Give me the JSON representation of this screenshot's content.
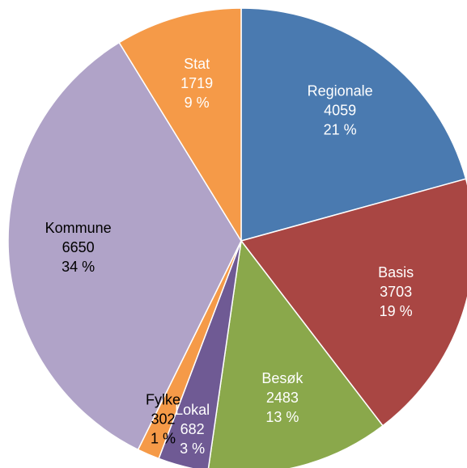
{
  "chart_data": {
    "type": "pie",
    "categories": [
      "Regionale",
      "Basis",
      "Besøk",
      "Lokal",
      "Fylke",
      "Kommune",
      "Stat"
    ],
    "values": [
      4059,
      3703,
      2483,
      682,
      302,
      6650,
      1719
    ],
    "percent_labels": [
      "21 %",
      "19 %",
      "13 %",
      "3 %",
      "1 %",
      "34 %",
      "9 %"
    ],
    "colors": [
      "#4a7ab0",
      "#a94643",
      "#8aa84b",
      "#6f5a94",
      "#f59a48",
      "#b0a3c8",
      "#f59a48"
    ],
    "label_colors": [
      "#ffffff",
      "#ffffff",
      "#ffffff",
      "#ffffff",
      "#000000",
      "#000000",
      "#ffffff"
    ]
  }
}
